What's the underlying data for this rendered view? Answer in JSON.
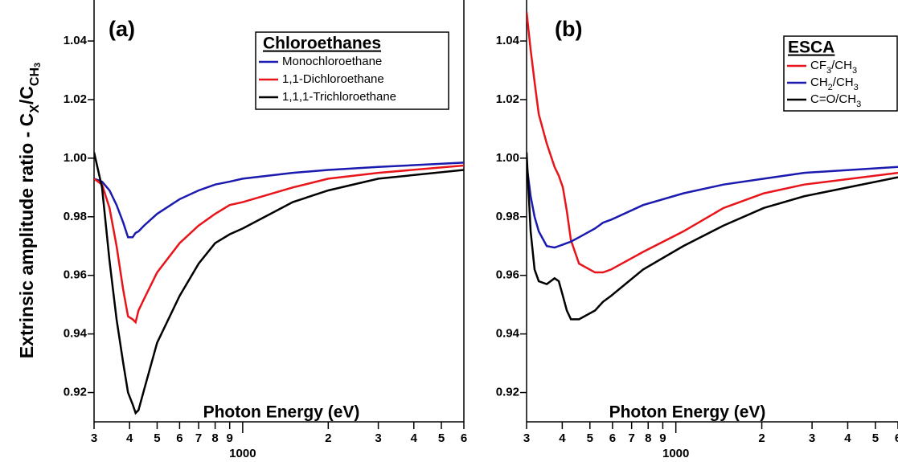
{
  "chart_data": [
    {
      "type": "line",
      "panel_label": "(a)",
      "xlabel": "Photon Energy (eV)",
      "ylabel_parts": [
        "Extrinsic amplitude ratio - C",
        "X",
        "/C",
        "CH",
        "3"
      ],
      "legend_title": "Chloroethanes",
      "legend": "upper right",
      "log_x": true,
      "x": [
        300,
        320,
        340,
        360,
        380,
        395,
        410,
        420,
        430,
        450,
        500,
        600,
        700,
        800,
        900,
        1000,
        1500,
        2000,
        3000,
        6000
      ],
      "series": [
        {
          "name": "Monochloroethane",
          "color": "#1a1aaf",
          "values": [
            0.993,
            0.992,
            0.989,
            0.984,
            0.978,
            0.973,
            0.973,
            0.9745,
            0.975,
            0.977,
            0.981,
            0.986,
            0.989,
            0.991,
            0.992,
            0.993,
            0.995,
            0.996,
            0.997,
            0.9985
          ]
        },
        {
          "name": "1,1-Dichloroethane",
          "color": "#e8141a",
          "values": [
            0.993,
            0.991,
            0.983,
            0.97,
            0.955,
            0.946,
            0.945,
            0.944,
            0.948,
            0.952,
            0.961,
            0.971,
            0.977,
            0.981,
            0.984,
            0.985,
            0.99,
            0.993,
            0.995,
            0.9975
          ]
        },
        {
          "name": "1,1,1-Trichloroethane",
          "color": "#000000",
          "values": [
            1.002,
            0.99,
            0.965,
            0.945,
            0.93,
            0.92,
            0.916,
            0.913,
            0.914,
            0.921,
            0.937,
            0.953,
            0.964,
            0.971,
            0.974,
            0.976,
            0.985,
            0.989,
            0.993,
            0.996
          ]
        }
      ],
      "xlim": [
        300,
        6000
      ],
      "xticks": [
        {
          "value": 300,
          "label": "3"
        },
        {
          "value": 400,
          "label": "4"
        },
        {
          "value": 500,
          "label": "5"
        },
        {
          "value": 600,
          "label": "6"
        },
        {
          "value": 700,
          "label": "7"
        },
        {
          "value": 800,
          "label": "8"
        },
        {
          "value": 900,
          "label": "9"
        },
        1000,
        {
          "value": 2000,
          "label": "2"
        },
        {
          "value": 3000,
          "label": "3"
        },
        {
          "value": 4000,
          "label": "4"
        },
        {
          "value": 5000,
          "label": "5"
        },
        {
          "value": 6000,
          "label": "6"
        }
      ],
      "ylim": [
        0.91,
        1.054
      ],
      "yticks": [
        0.92,
        0.94,
        0.96,
        0.98,
        {
          "value": 1,
          "label": "1.00"
        },
        1.02,
        1.04
      ]
    },
    {
      "type": "line",
      "panel_label": "(b)",
      "xlabel": "Photon Energy (eV)",
      "legend_title": "ESCA",
      "legend": "upper right",
      "log_x": true,
      "x": [
        300,
        310,
        320,
        331,
        353,
        376,
        389,
        402,
        415,
        429,
        458,
        521,
        556,
        593,
        768,
        1062,
        1469,
        2033,
        2815,
        6000
      ],
      "series": [
        {
          "name": "CF3/CH3",
          "color": "#e8141a",
          "values": [
            1.05,
            1.037,
            1.026,
            1.015,
            1.005,
            0.997,
            0.994,
            0.99,
            0.982,
            0.972,
            0.964,
            0.961,
            0.961,
            0.962,
            0.968,
            0.975,
            0.983,
            0.988,
            0.991,
            0.995
          ]
        },
        {
          "name": "CH2/CH3",
          "color": "#1a1aaf",
          "values": [
            0.998,
            0.987,
            0.98,
            0.975,
            0.97,
            0.9695,
            0.97,
            0.9705,
            0.971,
            0.9715,
            0.973,
            0.976,
            0.978,
            0.979,
            0.984,
            0.988,
            0.991,
            0.993,
            0.995,
            0.997
          ]
        },
        {
          "name": "C=O/CH3",
          "color": "#000000",
          "values": [
            1.002,
            0.975,
            0.962,
            0.958,
            0.957,
            0.959,
            0.958,
            0.953,
            0.948,
            0.945,
            0.945,
            0.948,
            0.951,
            0.953,
            0.962,
            0.97,
            0.977,
            0.983,
            0.987,
            0.9935
          ]
        }
      ],
      "xlim": [
        300,
        6000
      ],
      "xticks": [
        {
          "value": 300,
          "label": "3"
        },
        {
          "value": 400,
          "label": "4"
        },
        {
          "value": 500,
          "label": "5"
        },
        {
          "value": 600,
          "label": "6"
        },
        {
          "value": 700,
          "label": "7"
        },
        {
          "value": 800,
          "label": "8"
        },
        {
          "value": 900,
          "label": "9"
        },
        1000,
        {
          "value": 2000,
          "label": "2"
        },
        {
          "value": 3000,
          "label": "3"
        },
        {
          "value": 4000,
          "label": "4"
        },
        {
          "value": 5000,
          "label": "5"
        },
        {
          "value": 6000,
          "label": "6"
        }
      ],
      "ylim": [
        0.91,
        1.054
      ],
      "yticks": [
        0.92,
        0.94,
        0.96,
        0.98,
        {
          "value": 1,
          "label": "1.00"
        },
        1.02,
        1.04
      ]
    }
  ]
}
